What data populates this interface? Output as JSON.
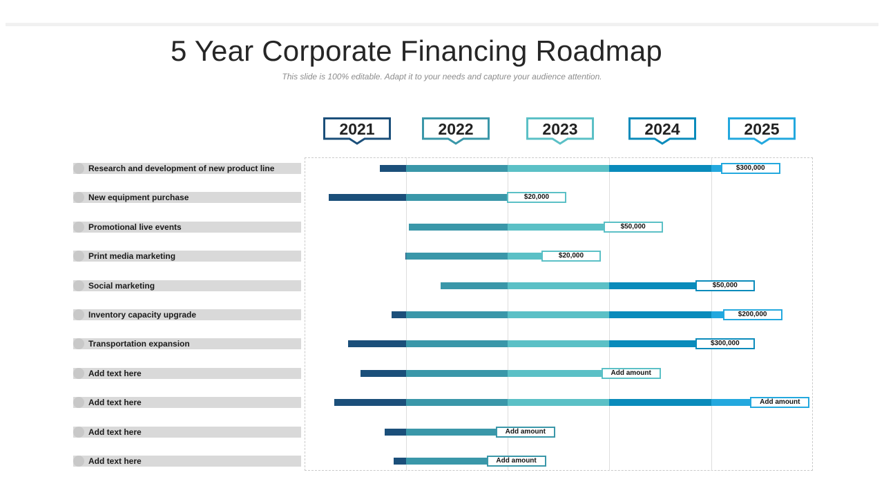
{
  "title": "5 Year Corporate Financing Roadmap",
  "subtitle": "This slide is 100% editable. Adapt it to your needs and capture your audience attention.",
  "years": [
    {
      "label": "2021",
      "color": "#1b4f7a"
    },
    {
      "label": "2022",
      "color": "#3a97a9"
    },
    {
      "label": "2023",
      "color": "#5bc0c6"
    },
    {
      "label": "2024",
      "color": "#0a8bbb"
    },
    {
      "label": "2025",
      "color": "#23a8de"
    }
  ],
  "rows": [
    {
      "label": "Research and development of new product line",
      "amount": "$300,000",
      "start": 0.74,
      "end": 4.1
    },
    {
      "label": "New equipment purchase",
      "amount": "$20,000",
      "start": 0.24,
      "end": 2.0
    },
    {
      "label": "Promotional live events",
      "amount": "$50,000",
      "start": 1.03,
      "end": 2.95
    },
    {
      "label": "Print media marketing",
      "amount": "$20,000",
      "start": 0.99,
      "end": 2.34
    },
    {
      "label": "Social marketing",
      "amount": "$50,000",
      "start": 1.34,
      "end": 3.85
    },
    {
      "label": "Inventory capacity upgrade",
      "amount": "$200,000",
      "start": 0.86,
      "end": 4.12
    },
    {
      "label": "Transportation expansion",
      "amount": "$300,000",
      "start": 0.43,
      "end": 3.85
    },
    {
      "label": "Add text here",
      "amount": "Add amount",
      "start": 0.55,
      "end": 2.93
    },
    {
      "label": "Add text here",
      "amount": "Add amount",
      "start": 0.29,
      "end": 4.39
    },
    {
      "label": "Add text here",
      "amount": "Add amount",
      "start": 0.79,
      "end": 1.89
    },
    {
      "label": "Add text here",
      "amount": "Add amount",
      "start": 0.88,
      "end": 1.8
    }
  ]
}
